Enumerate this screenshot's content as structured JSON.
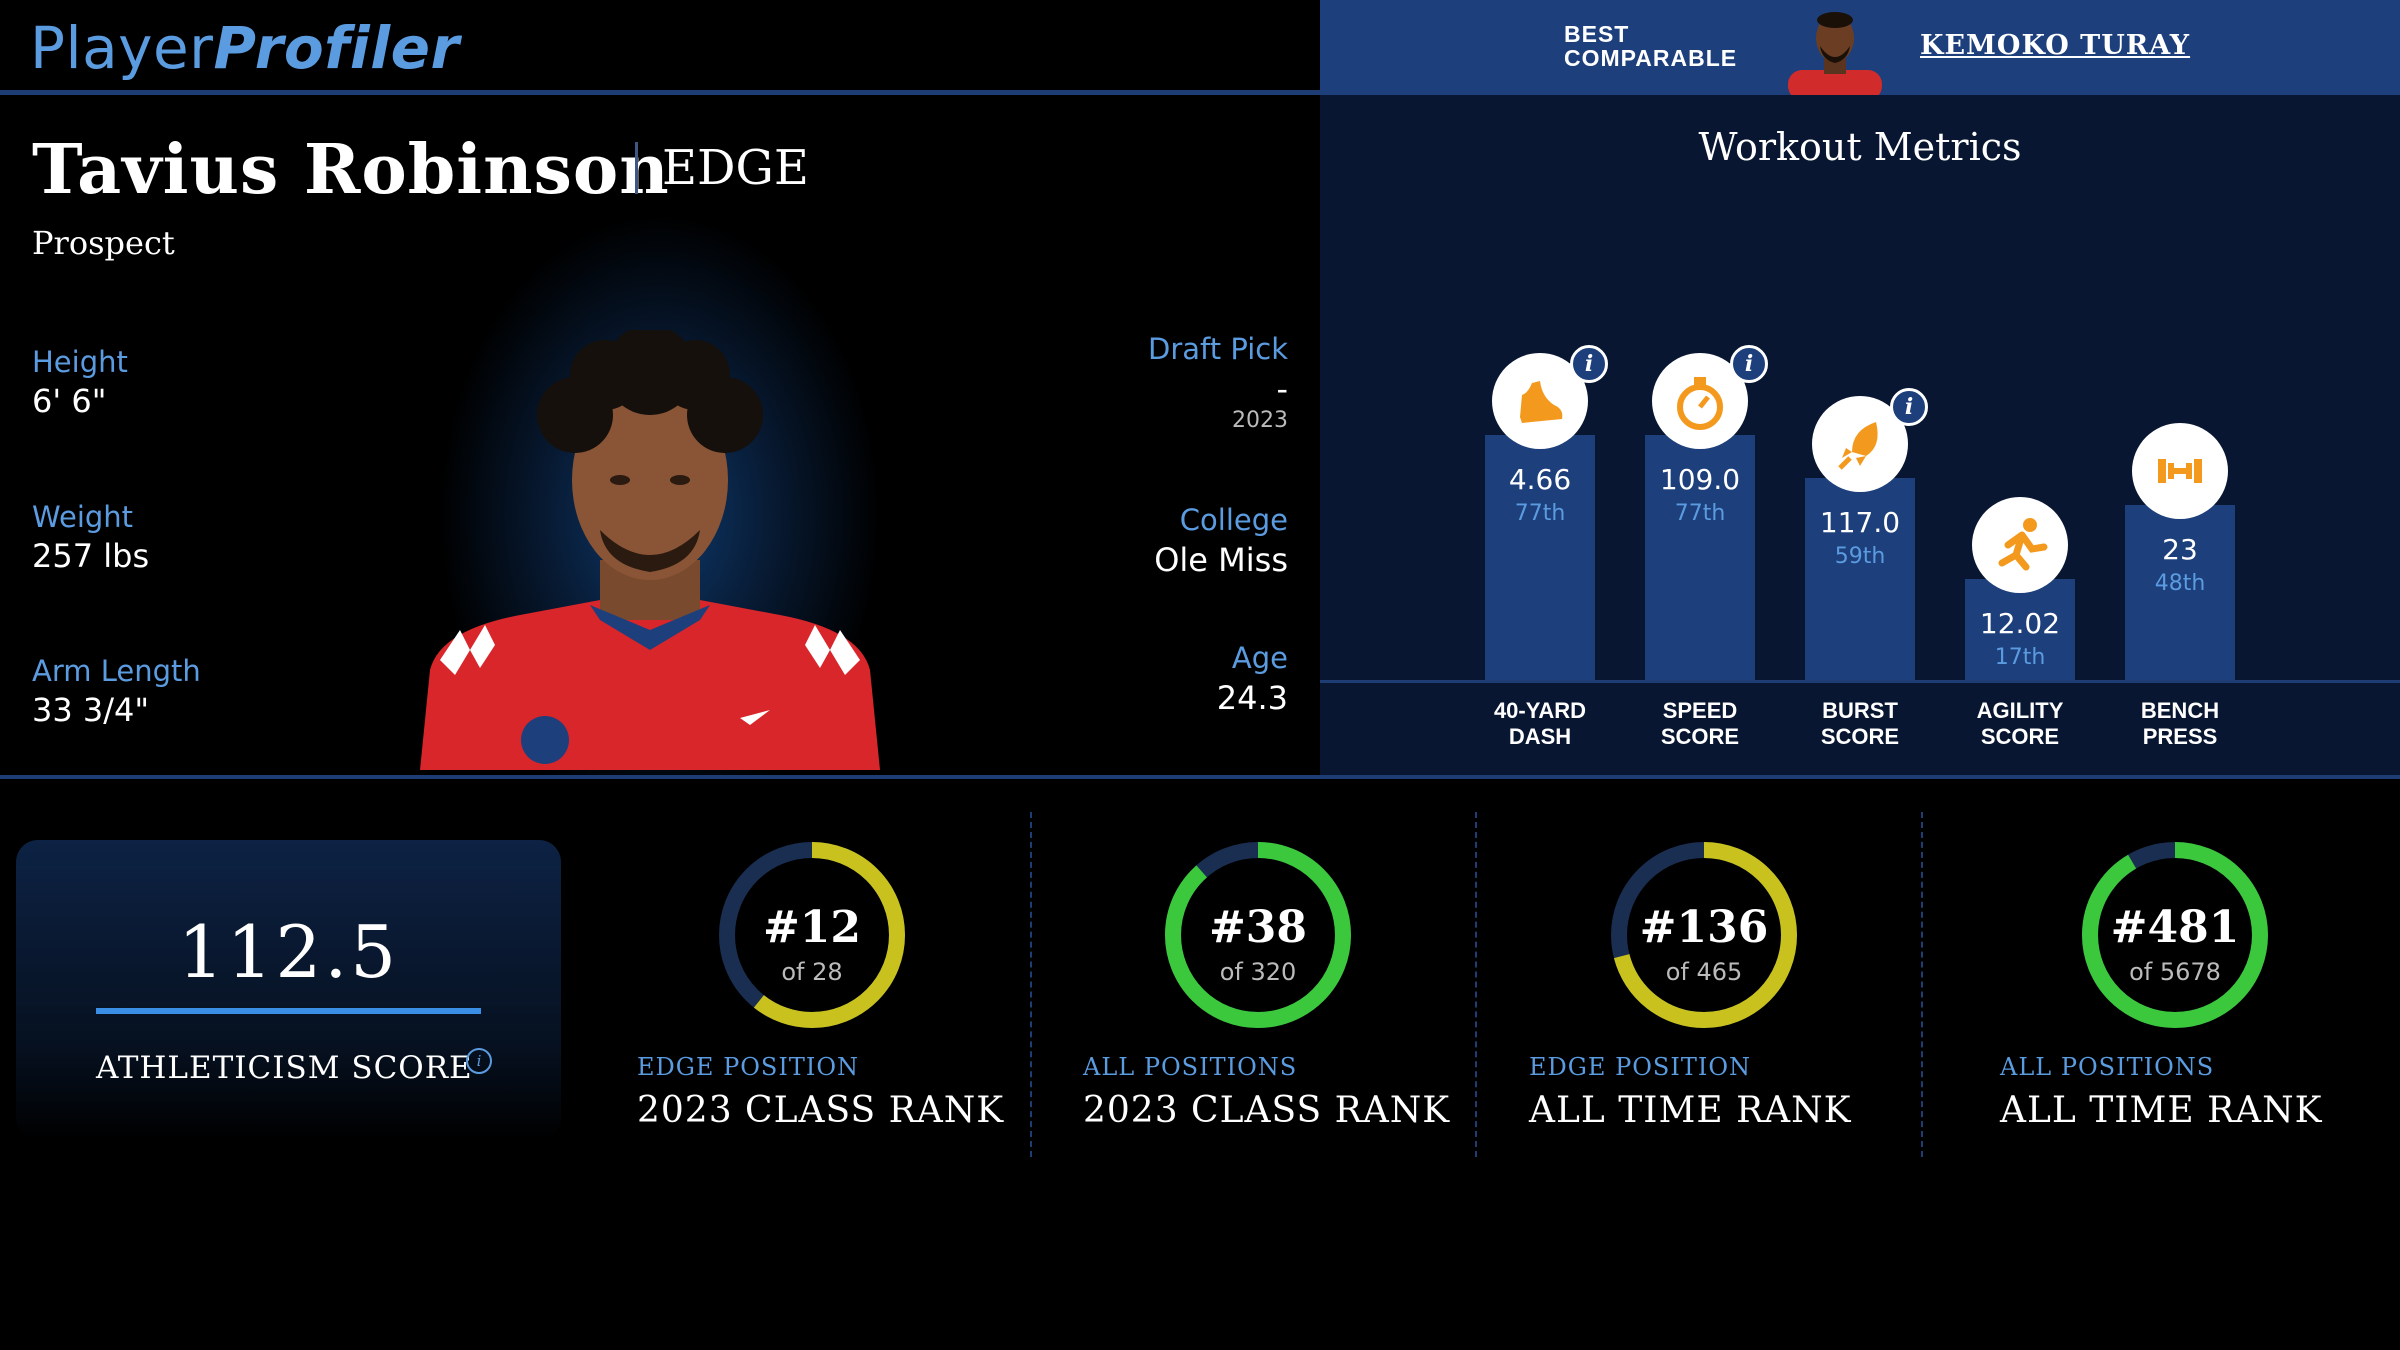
{
  "brand": {
    "part1": "Player",
    "part2": "Profiler"
  },
  "comparable": {
    "label_line1": "BEST",
    "label_line2": "COMPARABLE",
    "name": "KEMOKO TURAY"
  },
  "player": {
    "name": "Tavius Robinson",
    "position": "EDGE",
    "status": "Prospect",
    "height_label": "Height",
    "height": "6' 6\"",
    "weight_label": "Weight",
    "weight": "257 lbs",
    "arm_label": "Arm Length",
    "arm": "33 3/4\"",
    "draft_label": "Draft Pick",
    "draft_pick": "-",
    "draft_year": "2023",
    "college_label": "College",
    "college": "Ole Miss",
    "age_label": "Age",
    "age": "24.3"
  },
  "workout": {
    "title": "Workout Metrics",
    "metrics": [
      {
        "line1": "40-YARD",
        "line2": "DASH",
        "value": "4.66",
        "percentile": "77th",
        "pct": 77,
        "icon": "running-shoe-icon",
        "info": true
      },
      {
        "line1": "SPEED",
        "line2": "SCORE",
        "value": "109.0",
        "percentile": "77th",
        "pct": 77,
        "icon": "stopwatch-icon",
        "info": true
      },
      {
        "line1": "BURST",
        "line2": "SCORE",
        "value": "117.0",
        "percentile": "59th",
        "pct": 59,
        "icon": "rocket-icon",
        "info": true
      },
      {
        "line1": "AGILITY",
        "line2": "SCORE",
        "value": "12.02",
        "percentile": "17th",
        "pct": 17,
        "icon": "runner-icon",
        "info": false
      },
      {
        "line1": "BENCH",
        "line2": "PRESS",
        "value": "23",
        "percentile": "48th",
        "pct": 48,
        "icon": "dumbbell-icon",
        "info": false
      }
    ]
  },
  "athleticism": {
    "score": "112.5",
    "label": "ATHLETICISM SCORE"
  },
  "ranks": [
    {
      "rank": "#12",
      "of": "of 28",
      "rank_n": 12,
      "total_n": 28,
      "category": "EDGE POSITION",
      "title": "2023 CLASS RANK",
      "color": "#c9c21e"
    },
    {
      "rank": "#38",
      "of": "of 320",
      "rank_n": 38,
      "total_n": 320,
      "category": "ALL POSITIONS",
      "title": "2023 CLASS RANK",
      "color": "#3cc83c"
    },
    {
      "rank": "#136",
      "of": "of 465",
      "rank_n": 136,
      "total_n": 465,
      "category": "EDGE POSITION",
      "title": "ALL TIME RANK",
      "color": "#c9c21e"
    },
    {
      "rank": "#481",
      "of": "of 5678",
      "rank_n": 481,
      "total_n": 5678,
      "category": "ALL POSITIONS",
      "title": "ALL TIME RANK",
      "color": "#3cc83c"
    }
  ],
  "colors": {
    "accent": "#5b9be0",
    "bar": "#1d3f7b",
    "icon_orange": "#f39a1e",
    "ring_track": "#1a2e52"
  }
}
